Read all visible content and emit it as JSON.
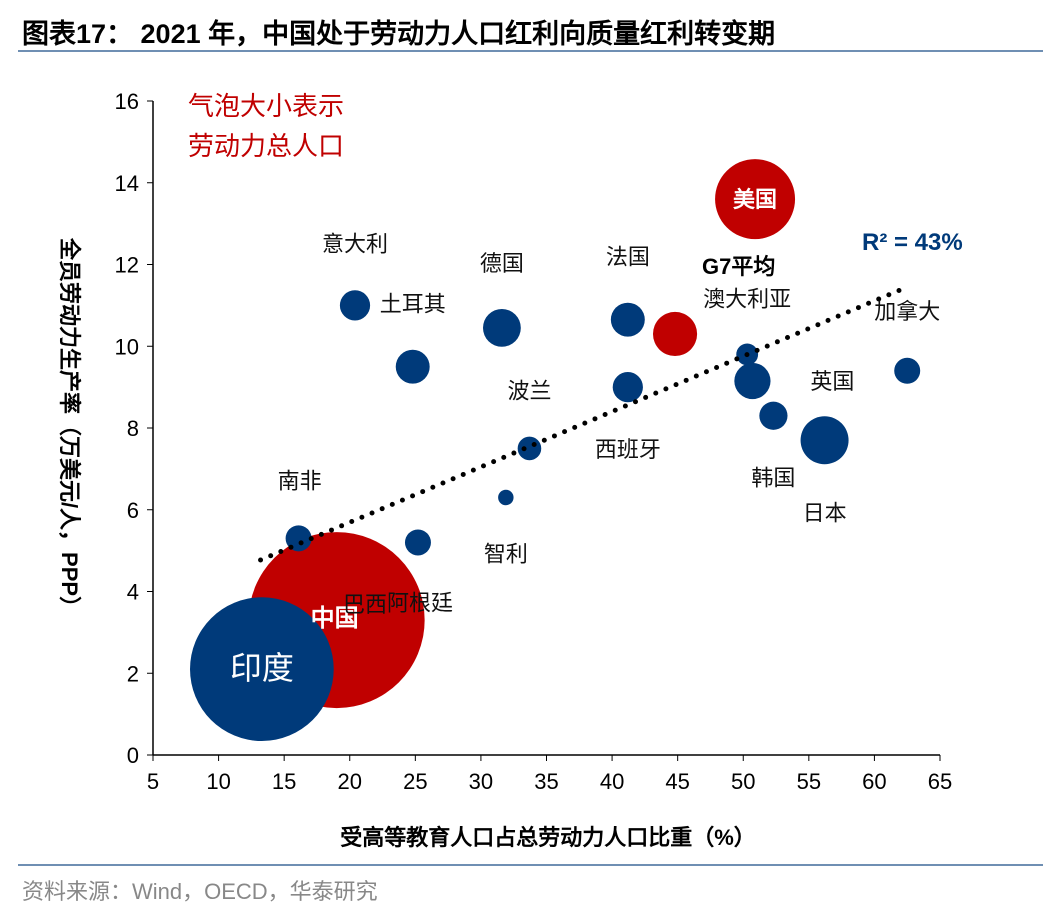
{
  "title": "图表17： 2021 年，中国处于劳动力人口红利向质量红利转变期",
  "source": "资料来源：Wind，OECD，华泰研究",
  "chart_data": {
    "type": "scatter",
    "subtype": "bubble",
    "title": "",
    "xlabel": "受高等教育人口占总劳动力人口比重（%）",
    "ylabel": "全员劳动力生产率（万美元/人，PPP）",
    "xlim": [
      5,
      65
    ],
    "ylim": [
      0,
      16
    ],
    "xticks": [
      5,
      10,
      15,
      20,
      25,
      30,
      35,
      40,
      45,
      50,
      55,
      60,
      65
    ],
    "yticks": [
      0,
      2,
      4,
      6,
      8,
      10,
      12,
      14,
      16
    ],
    "grid": false,
    "size_note": [
      "气泡大小表示",
      "劳动力总人口"
    ],
    "r2_label": "R² = 43%",
    "colors": {
      "highlight": "#c00000",
      "other": "#003a7a",
      "note": "#c00000",
      "r2": "#003a7a"
    },
    "bubbles": [
      {
        "name": "美国",
        "x": 50.9,
        "y": 13.6,
        "size": 161,
        "highlight": true,
        "label_inside": true
      },
      {
        "name": "G7平均",
        "x": 44.8,
        "y": 10.3,
        "size": 49,
        "highlight": true
      },
      {
        "name": "中国",
        "x": 19.0,
        "y": 3.3,
        "size": 780,
        "highlight": true,
        "label_inside": true
      },
      {
        "name": "印度",
        "x": 13.3,
        "y": 2.1,
        "size": 520,
        "highlight": false,
        "label_inside": true
      },
      {
        "name": "意大利",
        "x": 20.4,
        "y": 11.0,
        "size": 23,
        "highlight": false
      },
      {
        "name": "土耳其",
        "x": 24.8,
        "y": 9.5,
        "size": 29,
        "highlight": false
      },
      {
        "name": "德国",
        "x": 31.6,
        "y": 10.45,
        "size": 36,
        "highlight": false
      },
      {
        "name": "法国",
        "x": 41.2,
        "y": 10.65,
        "size": 29,
        "highlight": false
      },
      {
        "name": "澳大利亚",
        "x": 50.3,
        "y": 9.8,
        "size": 12,
        "highlight": false
      },
      {
        "name": "英国",
        "x": 50.7,
        "y": 9.15,
        "size": 33,
        "highlight": false
      },
      {
        "name": "加拿大",
        "x": 62.5,
        "y": 9.4,
        "size": 17,
        "highlight": false
      },
      {
        "name": "西班牙",
        "x": 41.2,
        "y": 9.0,
        "size": 23,
        "highlight": false
      },
      {
        "name": "波兰",
        "x": 33.7,
        "y": 7.5,
        "size": 14,
        "highlight": false
      },
      {
        "name": "韩国",
        "x": 52.3,
        "y": 8.3,
        "size": 20,
        "highlight": false
      },
      {
        "name": "日本",
        "x": 56.2,
        "y": 7.7,
        "size": 58,
        "highlight": false
      },
      {
        "name": "智利",
        "x": 31.9,
        "y": 6.3,
        "size": 6,
        "highlight": false
      },
      {
        "name": "阿根廷",
        "x": 25.2,
        "y": 5.2,
        "size": 17,
        "highlight": false
      },
      {
        "name": "南非",
        "x": 16.1,
        "y": 5.3,
        "size": 17,
        "highlight": false
      }
    ],
    "extra_labels": [
      "巴西"
    ],
    "trendline": {
      "style": "dotted",
      "x": [
        13.2,
        62.5
      ],
      "y": [
        4.77,
        11.45
      ]
    }
  }
}
